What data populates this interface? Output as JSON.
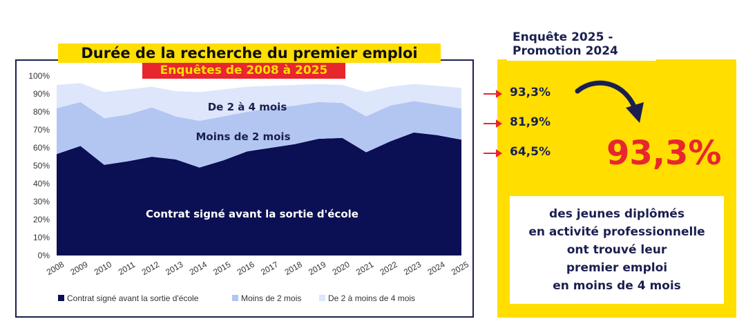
{
  "chart_data": {
    "type": "area",
    "title": "Durée de la recherche du premier emploi",
    "subtitle": "Enquêtes de 2008 à 2025",
    "categories": [
      "2008",
      "2009",
      "2010",
      "2011",
      "2012",
      "2013",
      "2014",
      "2015",
      "2016",
      "2017",
      "2018",
      "2019",
      "2020",
      "2021",
      "2022",
      "2023",
      "2024",
      "2025"
    ],
    "stacked": true,
    "ylim": [
      0,
      100
    ],
    "yticks": [
      "0%",
      "10%",
      "20%",
      "30%",
      "40%",
      "50%",
      "60%",
      "70%",
      "80%",
      "90%",
      "100%"
    ],
    "series": [
      {
        "name": "Contrat signé avant la sortie d'école",
        "color": "#0b0f54",
        "values": [
          56.5,
          61,
          50.5,
          52.5,
          55,
          53.5,
          49,
          53,
          58,
          60,
          62,
          65,
          65.5,
          57.5,
          63.5,
          68.5,
          67,
          64.5
        ]
      },
      {
        "name": "Moins de 2 mois",
        "color": "#b3c6f2",
        "values": [
          25.5,
          24.5,
          26,
          26,
          27.5,
          24,
          26,
          24.5,
          22,
          22,
          21.5,
          20.5,
          19.5,
          20,
          20,
          17.5,
          17,
          17.4
        ]
      },
      {
        "name": "De 2 à moins de 4 mois",
        "color": "#dde6fb",
        "values": [
          13,
          10.5,
          14.5,
          14,
          11.5,
          14,
          16,
          15,
          14,
          12.5,
          11.5,
          10,
          10,
          13.5,
          10.5,
          9.5,
          10.5,
          11.4
        ]
      }
    ],
    "area_labels": {
      "top": "De 2 à 4 mois",
      "middle": "Moins de 2 mois",
      "bottom": "Contrat signé avant la sortie d'école"
    },
    "legend_placement": "bottom"
  },
  "side": {
    "survey_line1": "Enquête 2025 -",
    "survey_line2": "Promotion 2024",
    "pct_top": "93,3%",
    "pct_mid": "81,9%",
    "pct_low": "64,5%",
    "big_pct": "93,3%",
    "text_lines": [
      "des jeunes diplômés",
      "en activité professionnelle",
      "ont trouvé leur",
      "premier emploi",
      "en moins de 4 mois"
    ],
    "colors": {
      "yellow": "#ffde00",
      "red": "#e8262e",
      "navy": "#1a1f4f"
    }
  }
}
